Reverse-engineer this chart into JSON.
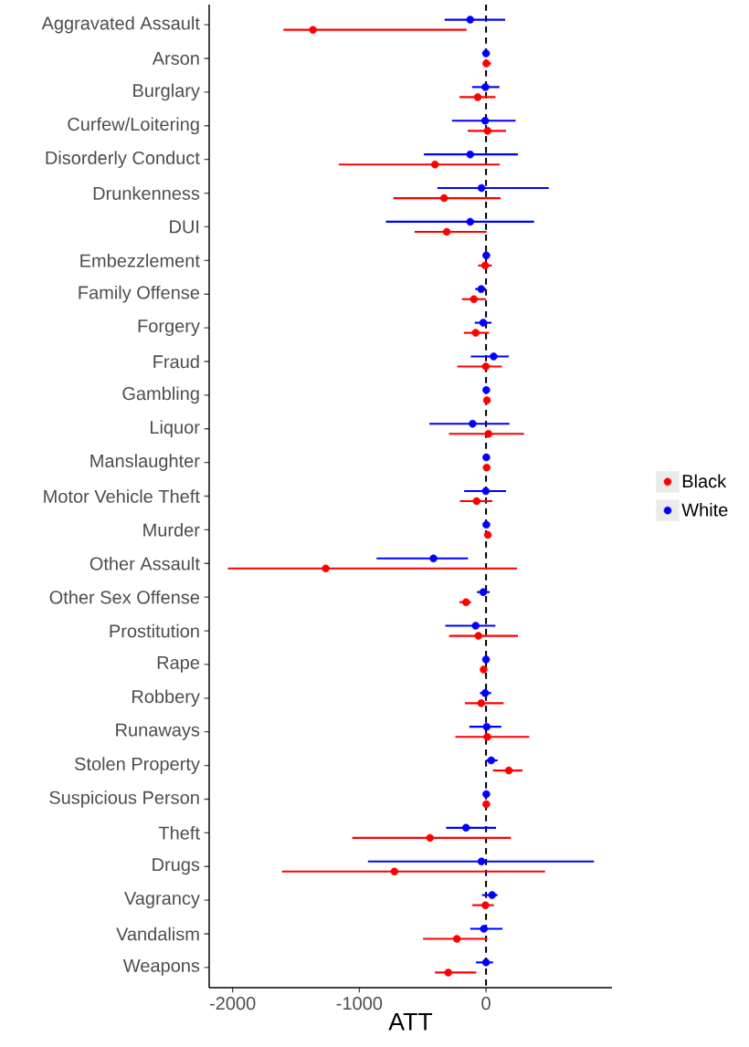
{
  "chart_data": {
    "type": "scatter",
    "orientation": "horizontal",
    "xlabel": "ATT",
    "categories": [
      "Aggravated Assault",
      "Arson",
      "Burglary",
      "Curfew/Loitering",
      "Disorderly Conduct",
      "Drunkenness",
      "DUI",
      "Embezzlement",
      "Family Offense",
      "Forgery",
      "Fraud",
      "Gambling",
      "Liquor",
      "Manslaughter",
      "Motor Vehicle Theft",
      "Murder",
      "Other Assault",
      "Other Sex Offense",
      "Prostitution",
      "Rape",
      "Robbery",
      "Runaways",
      "Stolen Property",
      "Suspicious Person",
      "Theft",
      "Drugs",
      "Vagrancy",
      "Vandalism",
      "Weapons"
    ],
    "series": [
      {
        "name": "Black",
        "color": "#ff0000",
        "values": [
          -1366,
          2,
          -65,
          12,
          -403,
          -331,
          -310,
          -7,
          -96,
          -82,
          -2,
          7,
          19,
          5,
          -74,
          14,
          -1265,
          -158,
          -60,
          -19,
          -38,
          10,
          180,
          2,
          -442,
          -723,
          -5,
          -230,
          -298
        ],
        "errors": [
          [
            -1599,
            -154
          ],
          [
            -20,
            40
          ],
          [
            -209,
            74
          ],
          [
            -144,
            158
          ],
          [
            -1162,
            108
          ],
          [
            -732,
            115
          ],
          [
            -564,
            5
          ],
          [
            -62,
            46
          ],
          [
            -190,
            -2
          ],
          [
            -175,
            24
          ],
          [
            -228,
            125
          ],
          null,
          [
            -293,
            300
          ],
          null,
          [
            -206,
            50
          ],
          null,
          [
            -2038,
            245
          ],
          [
            -211,
            -118
          ],
          [
            -291,
            252
          ],
          null,
          [
            -166,
            139
          ],
          [
            -242,
            341
          ],
          [
            55,
            288
          ],
          null,
          [
            -1056,
            197
          ],
          [
            -1611,
            466
          ],
          [
            -108,
            62
          ],
          [
            -497,
            10
          ],
          [
            -403,
            -77
          ]
        ]
      },
      {
        "name": "White",
        "color": "#0000ff",
        "values": [
          -125,
          0,
          -5,
          -7,
          -125,
          -36,
          -125,
          2,
          -38,
          -22,
          60,
          2,
          -106,
          2,
          -2,
          2,
          -415,
          -22,
          -82,
          0,
          -7,
          5,
          41,
          2,
          -158,
          -36,
          48,
          -17,
          0
        ],
        "errors": [
          [
            -327,
            151
          ],
          null,
          [
            -110,
            106
          ],
          [
            -269,
            233
          ],
          [
            -490,
            252
          ],
          [
            -384,
            495
          ],
          [
            -790,
            379
          ],
          null,
          [
            -86,
            0
          ],
          [
            -89,
            43
          ],
          [
            -120,
            180
          ],
          null,
          [
            -447,
            185
          ],
          null,
          [
            -173,
            158
          ],
          null,
          [
            -864,
            -142
          ],
          [
            -72,
            29
          ],
          [
            -322,
            74
          ],
          null,
          [
            -48,
            41
          ],
          [
            -132,
            120
          ],
          [
            0,
            91
          ],
          null,
          [
            -315,
            79
          ],
          [
            -932,
            852
          ],
          [
            -31,
            91
          ],
          [
            -125,
            130
          ],
          [
            -79,
            55
          ]
        ]
      }
    ],
    "xlim": [
      -2185,
      994
    ],
    "xticks": [
      -2000,
      -1000,
      0
    ],
    "ref_lines": [
      {
        "axis": "x",
        "value": 0,
        "line_style": "dashed",
        "color": "#000000"
      }
    ],
    "marker": "circle",
    "legend": "right",
    "grid": false
  }
}
